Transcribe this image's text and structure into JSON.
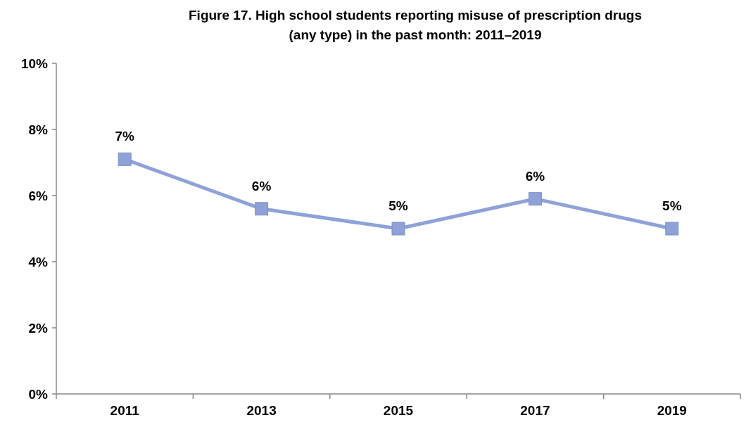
{
  "chart_data": {
    "type": "line",
    "title": "Figure 17. High school students reporting misuse of prescription drugs (any type) in the past month: 2011–2019",
    "categories": [
      "2011",
      "2013",
      "2015",
      "2017",
      "2019"
    ],
    "series": [
      {
        "color": "#8fa2d8",
        "values": [
          7.1,
          5.6,
          5.0,
          5.9,
          5.0
        ],
        "value_labels": [
          "7%",
          "6%",
          "5%",
          "6%",
          "5%"
        ]
      }
    ],
    "ylim": [
      0,
      10
    ],
    "yticks": [
      {
        "value": 0,
        "label": "0%"
      },
      {
        "value": 2,
        "label": "2%"
      },
      {
        "value": 4,
        "label": "4%"
      },
      {
        "value": 6,
        "label": "6%"
      },
      {
        "value": 8,
        "label": "8%"
      },
      {
        "value": 10,
        "label": "10%"
      }
    ],
    "marker": "square",
    "grid": false
  }
}
